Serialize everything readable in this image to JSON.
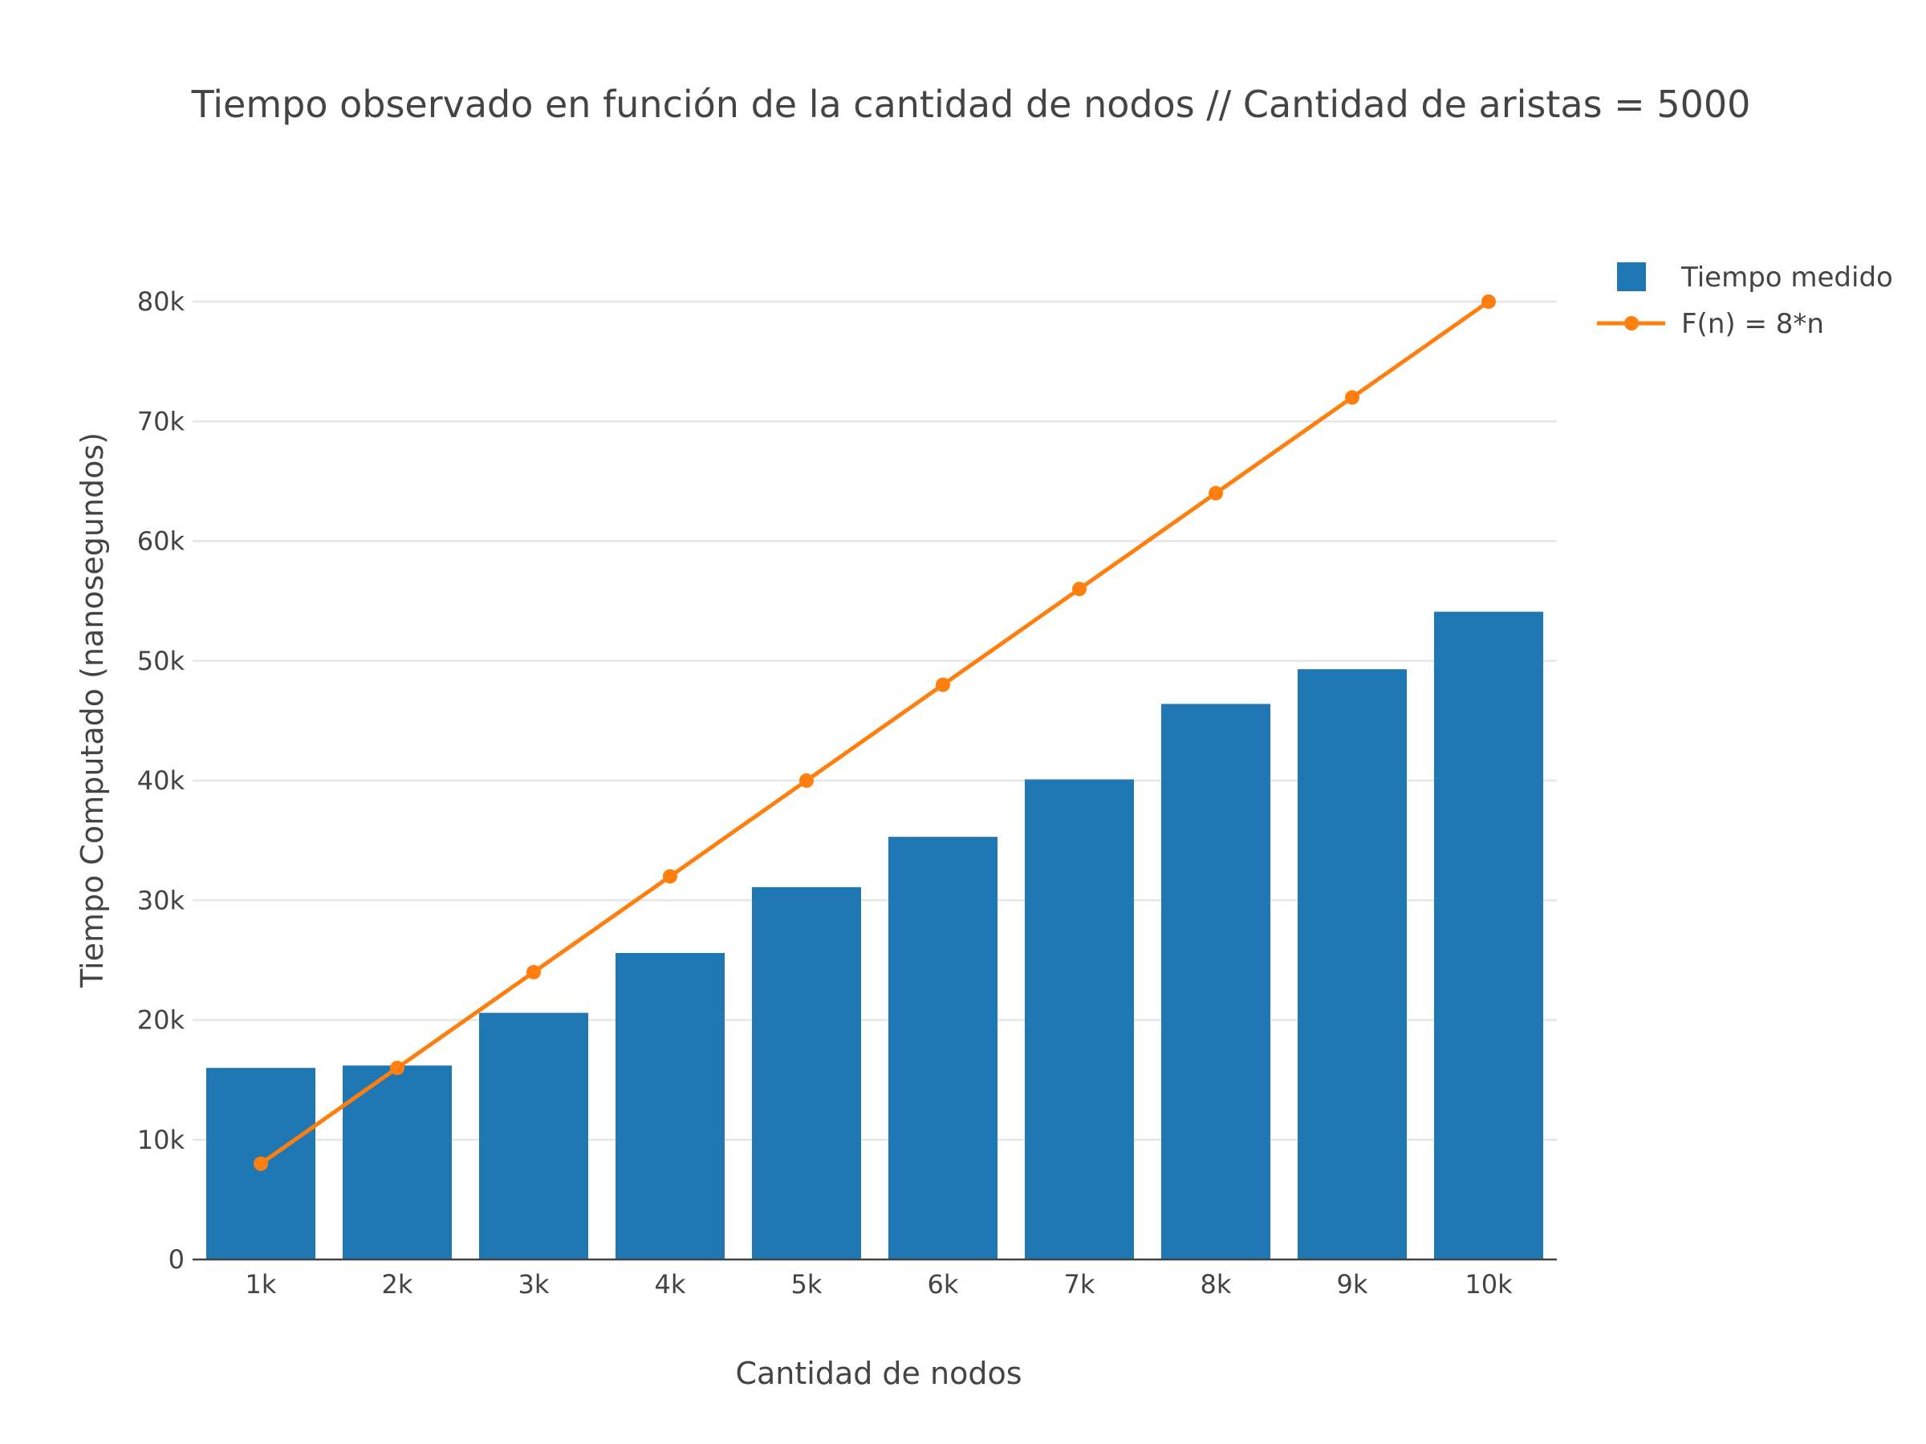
{
  "chart_data": {
    "type": "bar",
    "title": "Tiempo observado en función de la cantidad de nodos // Cantidad de aristas = 5000",
    "xlabel": "Cantidad de nodos",
    "ylabel": "Tiempo Computado (nanosegundos)",
    "categories": [
      "1k",
      "2k",
      "3k",
      "4k",
      "5k",
      "6k",
      "7k",
      "8k",
      "9k",
      "10k"
    ],
    "x": [
      1000,
      2000,
      3000,
      4000,
      5000,
      6000,
      7000,
      8000,
      9000,
      10000
    ],
    "ylim": [
      0,
      80000
    ],
    "yticks": [
      0,
      10000,
      20000,
      30000,
      40000,
      50000,
      60000,
      70000,
      80000
    ],
    "ytick_labels": [
      "0",
      "10k",
      "20k",
      "30k",
      "40k",
      "50k",
      "60k",
      "70k",
      "80k"
    ],
    "grid": true,
    "legend_position": "top-right",
    "series": [
      {
        "name": "Tiempo medido",
        "type": "bar",
        "color": "#1f77b4",
        "values": [
          16000,
          16200,
          20600,
          25600,
          31100,
          35300,
          40100,
          46400,
          49300,
          54100
        ]
      },
      {
        "name": "F(n) = 8*n",
        "type": "line",
        "color": "#ff7f0e",
        "values": [
          8000,
          16000,
          24000,
          32000,
          40000,
          48000,
          56000,
          64000,
          72000,
          80000
        ]
      }
    ]
  }
}
